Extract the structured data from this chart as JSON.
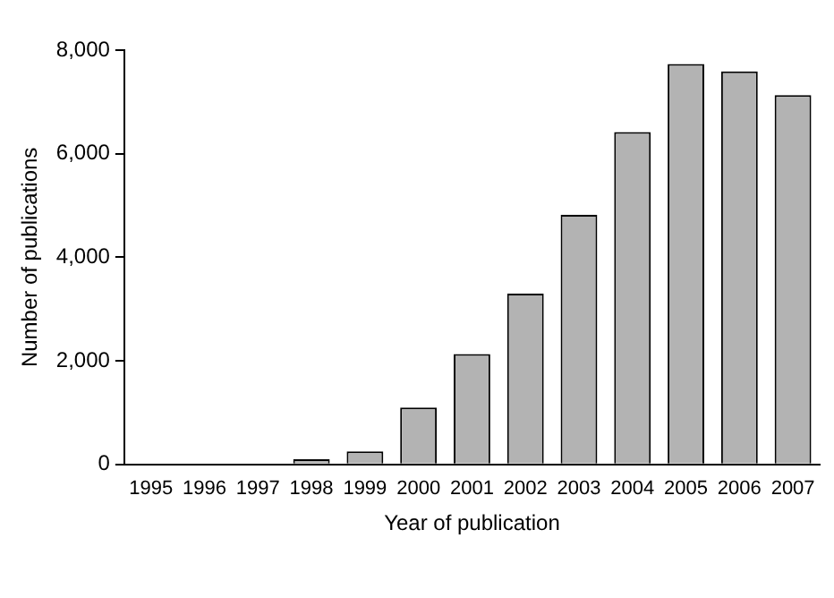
{
  "chart_data": {
    "type": "bar",
    "xlabel": "Year of publication",
    "ylabel": "Number of publications",
    "categories": [
      "1995",
      "1996",
      "1997",
      "1998",
      "1999",
      "2000",
      "2001",
      "2002",
      "2003",
      "2004",
      "2005",
      "2006",
      "2007"
    ],
    "values": [
      0,
      0,
      0,
      100,
      250,
      1100,
      2130,
      3300,
      4820,
      6420,
      7730,
      7590,
      7130
    ],
    "color": "#b3b3b3",
    "ylim": [
      0,
      8000
    ],
    "yticks": [
      {
        "value": 0,
        "label": "0"
      },
      {
        "value": 2000,
        "label": "2,000"
      },
      {
        "value": 4000,
        "label": "4,000"
      },
      {
        "value": 6000,
        "label": "6,000"
      },
      {
        "value": 8000,
        "label": "8,000"
      }
    ],
    "grid": false,
    "legend": false
  }
}
